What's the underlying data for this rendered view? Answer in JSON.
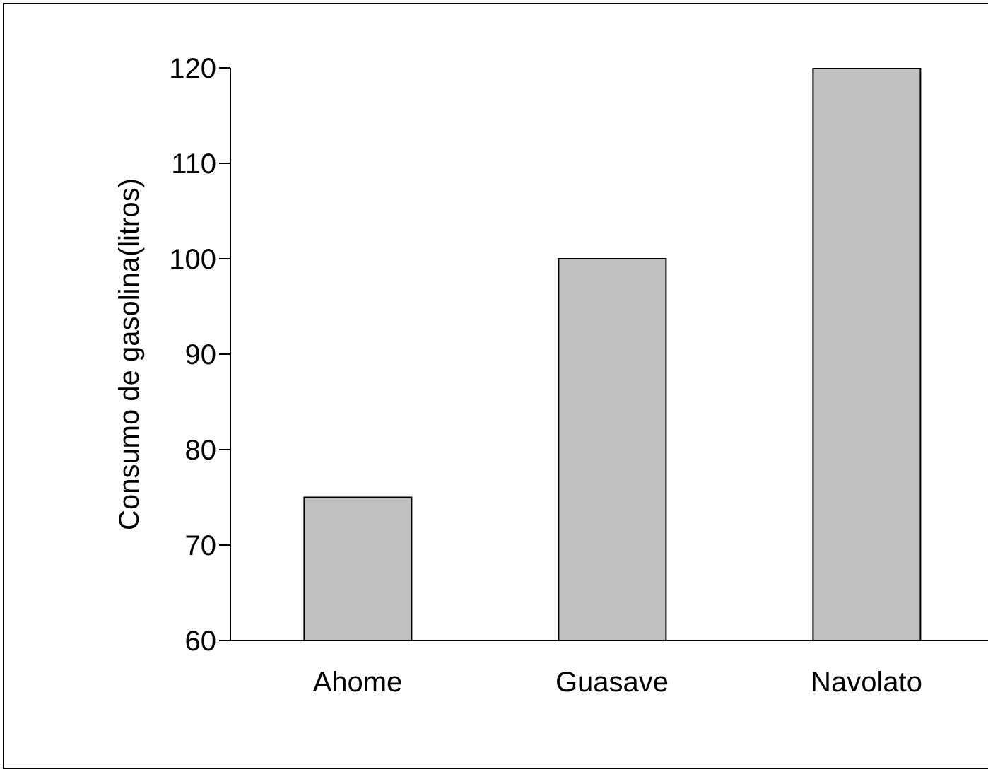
{
  "chart_data": {
    "type": "bar",
    "ylabel": "Consumo de gasolina(litros)",
    "categories": [
      "Ahome",
      "Guasave",
      "Navolato"
    ],
    "values": [
      75,
      100,
      120
    ],
    "color": "#c0c0c0",
    "ylim": [
      60,
      120
    ],
    "yticks": [
      60,
      70,
      80,
      90,
      100,
      110,
      120
    ],
    "grid": false,
    "legend": false
  }
}
